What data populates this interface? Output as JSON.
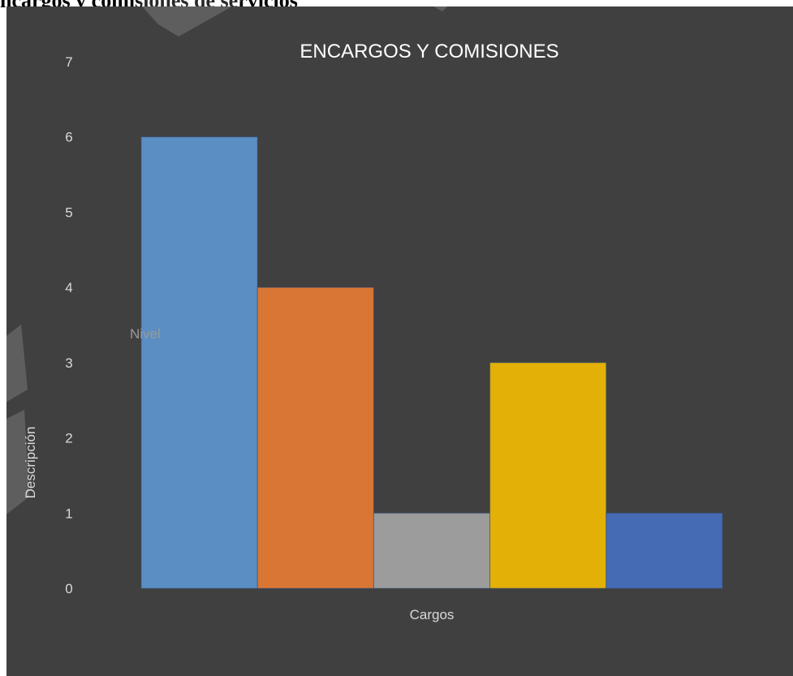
{
  "document": {
    "heading": "ncargos y comisiones de servicios"
  },
  "chart_data": {
    "type": "bar",
    "title": "ENCARGOS Y COMISIONES",
    "xlabel": "Cargos",
    "ylabel": "Descripción",
    "annotation": "Nivel",
    "ylim": [
      0,
      7
    ],
    "yticks": [
      0,
      1,
      2,
      3,
      4,
      5,
      6,
      7
    ],
    "grid": false,
    "series": [
      {
        "value": 6,
        "color": "#5B8EC2"
      },
      {
        "value": 4,
        "color": "#D97634"
      },
      {
        "value": 1,
        "color": "#9C9C9C"
      },
      {
        "value": 3,
        "color": "#E2B007"
      },
      {
        "value": 1,
        "color": "#456BB5"
      }
    ]
  },
  "colors": {
    "plot_background": "#404040",
    "text": "#D9D9D9"
  }
}
